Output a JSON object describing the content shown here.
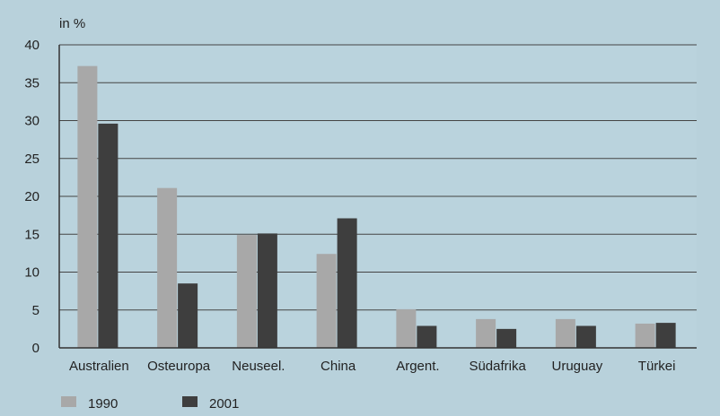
{
  "chart_data": {
    "type": "bar",
    "ylabel": "in %",
    "ylim": [
      0,
      40
    ],
    "yticks": [
      "0",
      "5",
      "10",
      "15",
      "20",
      "25",
      "30",
      "35",
      "40"
    ],
    "categories": [
      "Australien",
      "Osteuropa",
      "Neuseel.",
      "China",
      "Argent.",
      "Südafrika",
      "Uruguay",
      "Türkei"
    ],
    "series": [
      {
        "name": "1990",
        "values": [
          37.2,
          21.1,
          14.9,
          12.4,
          5.1,
          3.8,
          3.8,
          3.2
        ],
        "color": "#a8a8a8"
      },
      {
        "name": "2001",
        "values": [
          29.6,
          8.5,
          15.1,
          17.1,
          2.9,
          2.5,
          2.9,
          3.3
        ],
        "color": "#3e3e3e"
      }
    ],
    "grid": true,
    "legend": "bottom-left"
  }
}
